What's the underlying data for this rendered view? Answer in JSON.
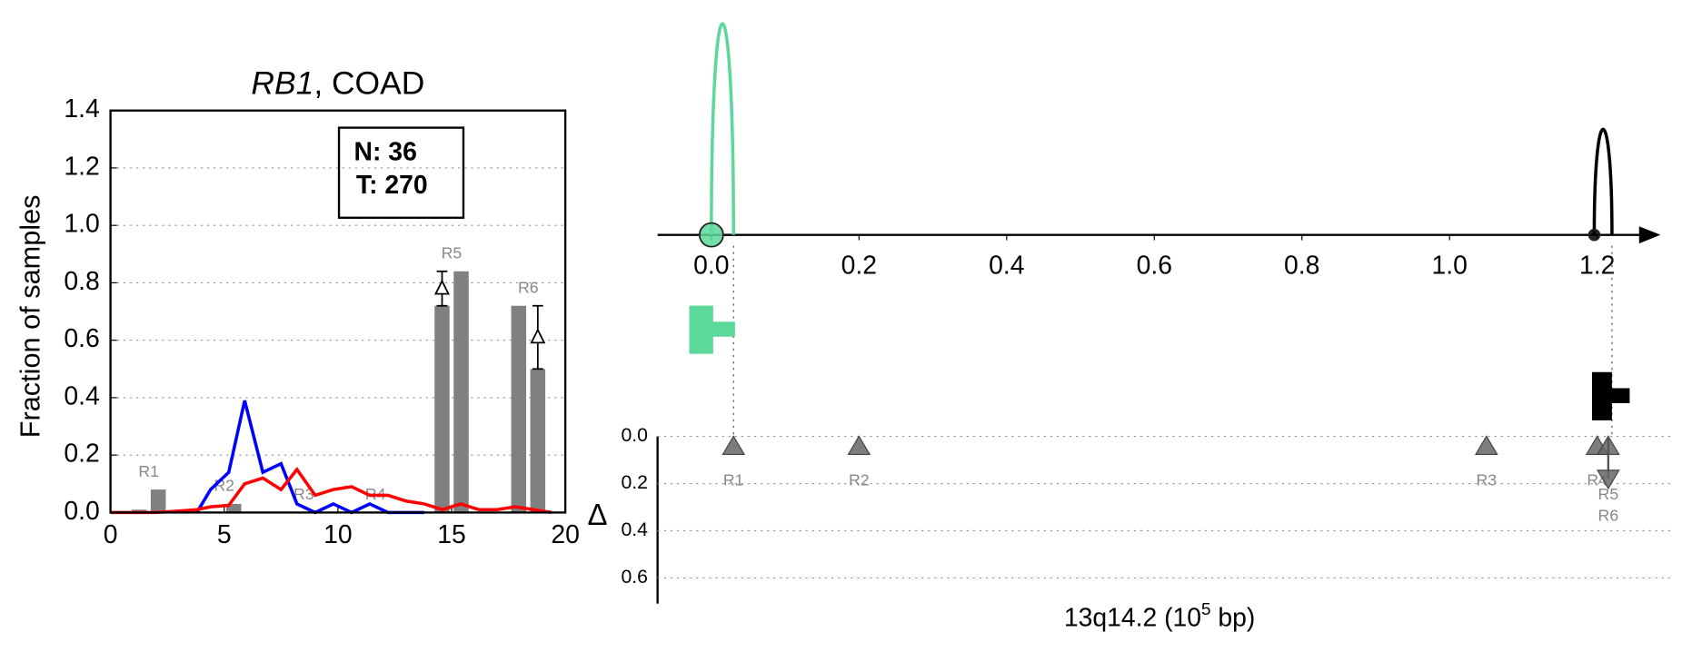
{
  "chart_data": [
    {
      "type": "line",
      "title_gene": "RB1",
      "title_rest": ", COAD",
      "ylabel": "Fraction of samples",
      "annotation": [
        "N: 36",
        "T: 270"
      ],
      "x": [
        0,
        1,
        2,
        3,
        3.8,
        4.4,
        5.2,
        5.9,
        6.7,
        7.5,
        8.2,
        9.0,
        9.8,
        10.6,
        11.4,
        12.2,
        13.0,
        13.8,
        14.6,
        15.4,
        16.2,
        17.0,
        17.8,
        18.6,
        19.4
      ],
      "series": [
        {
          "color": "#0000ff",
          "values": [
            null,
            null,
            null,
            null,
            0,
            0.08,
            0.14,
            0.39,
            0.14,
            0.17,
            0.03,
            0,
            0.03,
            0,
            0.03,
            0,
            0,
            0,
            null,
            null,
            null,
            null,
            null,
            null,
            null
          ]
        },
        {
          "color": "#ff0000",
          "values": [
            0,
            0,
            0,
            0.005,
            0.01,
            0.02,
            0.025,
            0.1,
            0.12,
            0.08,
            0.15,
            0.06,
            0.08,
            0.09,
            0.06,
            0.06,
            0.04,
            0.03,
            0.01,
            0.03,
            0.01,
            0.01,
            0.02,
            0.01,
            0
          ]
        }
      ],
      "bars": {
        "regions": [
          "R1",
          "R2",
          "R3",
          "R4",
          "R5",
          "R6"
        ],
        "centers": [
          1.68,
          5.0,
          8.5,
          11.65,
          15.0,
          18.37
        ],
        "normal": [
          0.01,
          0,
          0,
          0,
          0.72,
          0.72
        ],
        "tumor": [
          0.08,
          0.03,
          0,
          0,
          0.84,
          0.5
        ],
        "delta_marked": [
          false,
          false,
          false,
          false,
          true,
          true
        ],
        "color": "#808080"
      },
      "xlim": [
        0,
        20
      ],
      "xticks": [
        0,
        5,
        10,
        15,
        20
      ],
      "ylim": [
        0,
        1.4
      ],
      "yticks": [
        {
          "value": 0,
          "label": "0.0"
        },
        0.2,
        0.4,
        0.6,
        0.8,
        {
          "value": 1,
          "label": "1.0"
        },
        1.2,
        1.4
      ],
      "grid": true
    },
    {
      "type": "track",
      "xlim": [
        -0.07,
        1.28
      ],
      "xticks": [
        {
          "value": 0,
          "label": "0.0"
        },
        0.2,
        0.4,
        0.6,
        0.8,
        {
          "value": 1,
          "label": "1.0"
        },
        1.2
      ],
      "peaks": [
        {
          "x": [
            0,
            0.03
          ],
          "height": 1,
          "color": "#5cd89a"
        },
        {
          "x": [
            1.196,
            1.22
          ],
          "height": 0.5,
          "color": "#000000"
        }
      ],
      "genes": [
        {
          "start": -0.03,
          "end": 0.032,
          "color": "#5cd89a"
        },
        {
          "start": 1.193,
          "end": 1.244,
          "color": "#000000"
        }
      ],
      "delta": {
        "ylabel": "Δ",
        "ylim": [
          0,
          0.7
        ],
        "yticks": [
          {
            "value": 0,
            "label": "0.0"
          },
          0.2,
          0.4,
          0.6
        ],
        "regions": [
          "R1",
          "R2",
          "R3",
          "R4",
          "R5",
          "R6"
        ],
        "x": [
          0.03,
          0.2,
          1.05,
          1.2,
          1.215,
          1.215
        ],
        "values": [
          0.04,
          0.04,
          0.04,
          0.04,
          0.04,
          0.18
        ],
        "markers": [
          "up",
          "up",
          "up",
          "up",
          "up",
          "down"
        ],
        "color": "#666666"
      },
      "xlabel": [
        "13q14.2 (10",
        "5",
        " bp)"
      ]
    }
  ]
}
